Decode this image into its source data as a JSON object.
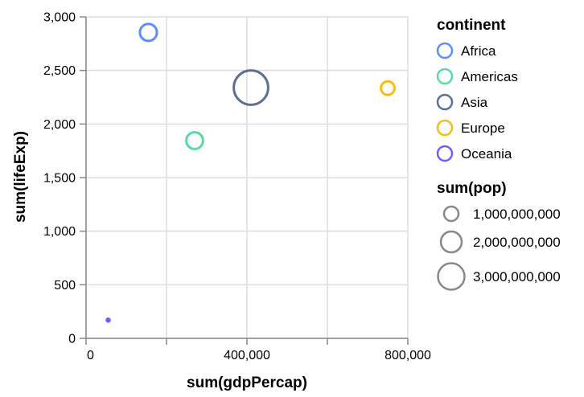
{
  "chart_data": {
    "type": "scatter",
    "title": "",
    "xlabel": "sum(gdpPercap)",
    "ylabel": "sum(lifeExp)",
    "xlim": [
      0,
      800000
    ],
    "ylim": [
      0,
      3000
    ],
    "x_ticks": [
      0,
      200000,
      400000,
      600000,
      800000
    ],
    "x_tick_labels": [
      "0",
      "",
      "400,000",
      "",
      "800,000"
    ],
    "y_ticks": [
      0,
      500,
      1000,
      1500,
      2000,
      2500,
      3000
    ],
    "y_tick_labels": [
      "0",
      "500",
      "1,000",
      "1,500",
      "2,000",
      "2,500",
      "3,000"
    ],
    "grid": true,
    "legend_placement": "right",
    "color_legend_title": "continent",
    "size_legend_title": "sum(pop)",
    "size_legend": [
      {
        "value": 1000000000,
        "label": "1,000,000,000"
      },
      {
        "value": 2000000000,
        "label": "2,000,000,000"
      },
      {
        "value": 3000000000,
        "label": "3,000,000,000"
      }
    ],
    "series": [
      {
        "name": "Africa",
        "color": "#5b8ff9",
        "x": 155000,
        "y": 2855,
        "size": 930000000
      },
      {
        "name": "Americas",
        "color": "#5ad8a6",
        "x": 270000,
        "y": 1845,
        "size": 900000000
      },
      {
        "name": "Asia",
        "color": "#5d7092",
        "x": 410000,
        "y": 2340,
        "size": 3800000000
      },
      {
        "name": "Europe",
        "color": "#f6bd16",
        "x": 750000,
        "y": 2335,
        "size": 590000000
      },
      {
        "name": "Oceania",
        "color": "#6f5ef9",
        "x": 55000,
        "y": 170,
        "size": 25000000
      }
    ]
  }
}
